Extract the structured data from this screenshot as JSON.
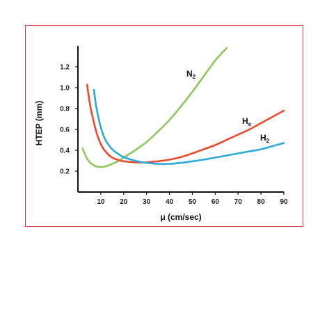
{
  "chart_data": {
    "type": "line",
    "title": "",
    "xlabel": "μ (cm/sec)",
    "ylabel": "HTEP (mm)",
    "xlim": [
      0,
      90
    ],
    "ylim": [
      0,
      1.4
    ],
    "xticks": [
      10,
      20,
      30,
      40,
      50,
      60,
      70,
      80,
      90
    ],
    "yticks": [
      0.2,
      0.4,
      0.6,
      0.8,
      1.0,
      1.2
    ],
    "ytick_labels": [
      "0.2",
      "0.4",
      "0.6",
      "0.8",
      "1.0",
      "1.2"
    ],
    "grid": false,
    "series": [
      {
        "name": "N2",
        "label_main": "N",
        "label_sub": "2",
        "color": "#8dc85a",
        "x": [
          2,
          4,
          6,
          8,
          10,
          12,
          15,
          18,
          20,
          25,
          30,
          35,
          40,
          45,
          50,
          55,
          60,
          65
        ],
        "y": [
          0.42,
          0.32,
          0.27,
          0.245,
          0.24,
          0.245,
          0.27,
          0.3,
          0.33,
          0.4,
          0.48,
          0.58,
          0.69,
          0.82,
          0.96,
          1.11,
          1.26,
          1.38
        ]
      },
      {
        "name": "He",
        "label_main": "H",
        "label_sub": "e",
        "color": "#ec4a2c",
        "x": [
          4,
          5,
          6,
          8,
          10,
          12,
          15,
          18,
          20,
          25,
          30,
          35,
          40,
          45,
          50,
          55,
          60,
          65,
          70,
          75,
          80,
          85,
          90
        ],
        "y": [
          1.03,
          0.88,
          0.76,
          0.58,
          0.46,
          0.39,
          0.33,
          0.305,
          0.295,
          0.285,
          0.285,
          0.295,
          0.31,
          0.335,
          0.37,
          0.41,
          0.45,
          0.5,
          0.55,
          0.6,
          0.66,
          0.72,
          0.78
        ]
      },
      {
        "name": "H2",
        "label_main": "H",
        "label_sub": "2",
        "color": "#2ba8dc",
        "x": [
          7,
          8,
          10,
          12,
          15,
          18,
          20,
          25,
          30,
          35,
          40,
          45,
          50,
          55,
          60,
          65,
          70,
          75,
          80,
          85,
          90
        ],
        "y": [
          0.98,
          0.82,
          0.62,
          0.5,
          0.41,
          0.36,
          0.335,
          0.3,
          0.28,
          0.27,
          0.27,
          0.28,
          0.295,
          0.31,
          0.33,
          0.35,
          0.37,
          0.39,
          0.41,
          0.44,
          0.47
        ]
      }
    ],
    "colors": {
      "frame": "#e0413a",
      "header": "#e0332c",
      "axis": "#111111"
    }
  }
}
